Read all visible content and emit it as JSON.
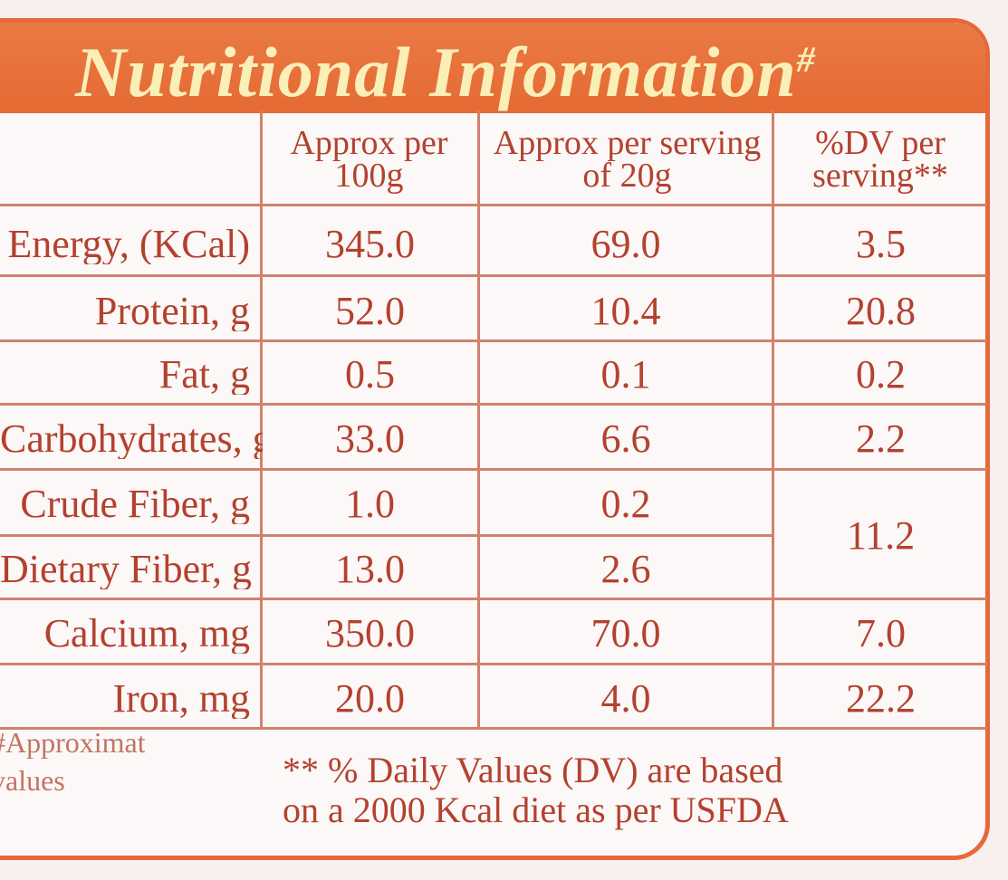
{
  "panel": {
    "title": "Nutritional Information",
    "title_mark": "#"
  },
  "table": {
    "headers": {
      "col1": "Approx per 100g",
      "col2": "Approx per serving of 20g",
      "col3": "%DV per serving**"
    },
    "rows": [
      {
        "label": "Energy, (KCal)",
        "per100": "345.0",
        "serving": "69.0",
        "dv": "3.5"
      },
      {
        "label": "Protein, g",
        "per100": "52.0",
        "serving": "10.4",
        "dv": "20.8"
      },
      {
        "label": "Fat, g",
        "per100": "0.5",
        "serving": "0.1",
        "dv": "0.2"
      },
      {
        "label": "Carbohydrates, g",
        "per100": "33.0",
        "serving": "6.6",
        "dv": "2.2"
      },
      {
        "label": "Crude Fiber, g",
        "per100": "1.0",
        "serving": "0.2",
        "dv": "11.2"
      },
      {
        "label": "Dietary Fiber, g",
        "per100": "13.0",
        "serving": "2.6",
        "dv": ""
      },
      {
        "label": "Calcium, mg",
        "per100": "350.0",
        "serving": "70.0",
        "dv": "7.0"
      },
      {
        "label": "Iron, mg",
        "per100": "20.0",
        "serving": "4.0",
        "dv": "22.2"
      }
    ]
  },
  "footnotes": {
    "approx": "#Approximate values",
    "dv_line1": "** % Daily Values (DV) are based",
    "dv_line2": "on a 2000 Kcal diet as per USFDA"
  }
}
